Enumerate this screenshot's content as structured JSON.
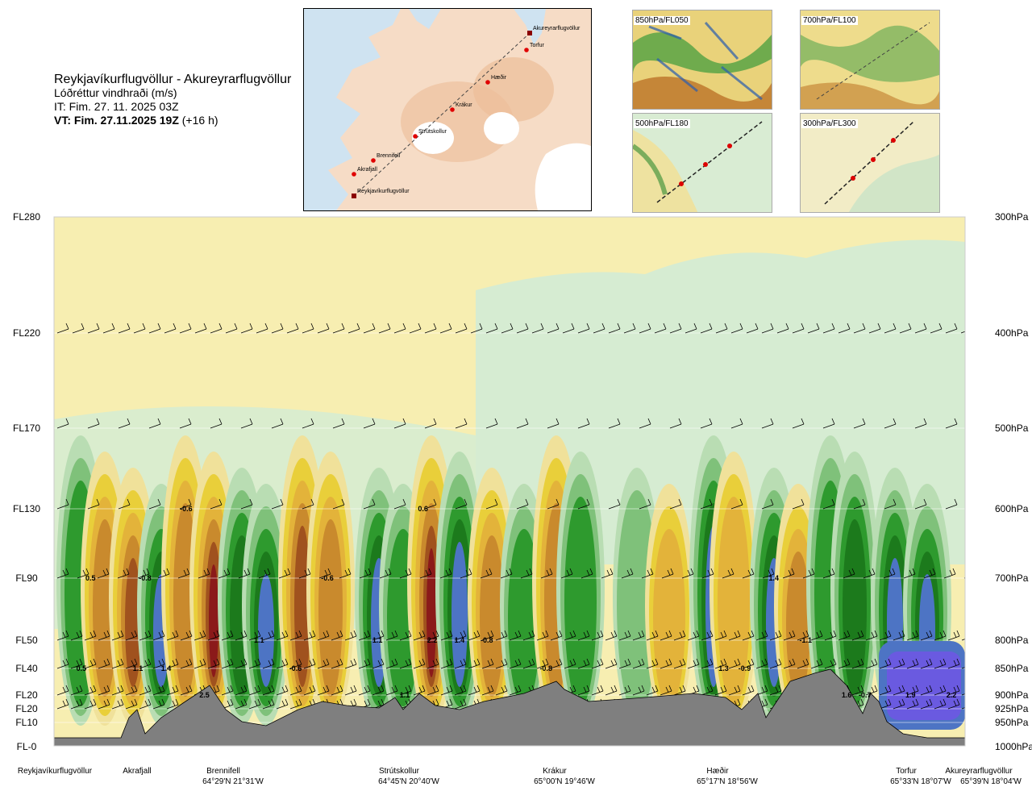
{
  "header": {
    "route": "Reykjavíkurflugvöllur - Akureyrarflugvöllur",
    "subtitle": "Lóðréttur vindhraði (m/s)",
    "it_line": "IT: Fim. 27. 11. 2025 03Z",
    "vt_bold": "VT: Fim. 27.11.2025 19Z",
    "vt_suffix": " (+16 h)"
  },
  "route_map": {
    "points": [
      {
        "name": "Akureyrarflugvöllur",
        "kind": "airport"
      },
      {
        "name": "Torfur",
        "kind": "waypoint"
      },
      {
        "name": "Hæðir",
        "kind": "waypoint"
      },
      {
        "name": "Krákur",
        "kind": "waypoint"
      },
      {
        "name": "Strútskollur",
        "kind": "waypoint"
      },
      {
        "name": "Brennifell",
        "kind": "waypoint"
      },
      {
        "name": "Akrafjall",
        "kind": "waypoint"
      },
      {
        "name": "Reykjavíkurflugvöllur",
        "kind": "airport"
      }
    ]
  },
  "level_maps": [
    {
      "label": "850hPa/FL050"
    },
    {
      "label": "700hPa/FL100"
    },
    {
      "label": "500hPa/FL180"
    },
    {
      "label": "300hPa/FL300"
    }
  ],
  "colors": {
    "ground": "#7f7f7f",
    "yellow_light": "#f7eeb1",
    "green_light": "#d6ecd2"
  },
  "chart_data": {
    "type": "heatmap",
    "title": "Lóðréttur vindhraði (m/s)",
    "variable": "vertical wind speed (m/s)",
    "levels_fl": [
      "FL280",
      "FL220",
      "FL170",
      "FL130",
      "FL90",
      "FL50",
      "FL40",
      "FL20",
      "FL20",
      "FL10",
      "FL-0"
    ],
    "levels_hpa": [
      "300hPa",
      "400hPa",
      "500hPa",
      "600hPa",
      "700hPa",
      "800hPa",
      "850hPa",
      "900hPa",
      "925hPa",
      "950hPa",
      "1000hPa"
    ],
    "locations": [
      {
        "name": "Reykjavíkurflugvöllur",
        "coord": "",
        "pos": 0.0
      },
      {
        "name": "Akrafjall",
        "coord": "",
        "pos": 0.09
      },
      {
        "name": "Brennifell",
        "coord": "64°29'N 21°31'W",
        "pos": 0.19
      },
      {
        "name": "Strútskollur",
        "coord": "64°45'N 20°40'W",
        "pos": 0.38
      },
      {
        "name": "Krákur",
        "coord": "65°00'N 19°46'W",
        "pos": 0.55
      },
      {
        "name": "Hæðir",
        "coord": "65°17'N 18°56'W",
        "pos": 0.74
      },
      {
        "name": "Torfur",
        "coord": "65°33'N 18°07'W",
        "pos": 0.93
      },
      {
        "name": "Akureyrarflugvöllur",
        "coord": "65°39'N 18°04'W",
        "pos": 1.0
      }
    ],
    "annotations": [
      {
        "text": "0.5",
        "x": 0.04,
        "level_hpa": 700
      },
      {
        "text": "-0.8",
        "x": 0.1,
        "level_hpa": 700
      },
      {
        "text": "-0.6",
        "x": 0.145,
        "level_hpa": 600
      },
      {
        "text": "-0.6",
        "x": 0.3,
        "level_hpa": 700
      },
      {
        "text": "0.6",
        "x": 0.405,
        "level_hpa": 600
      },
      {
        "text": "1.4",
        "x": 0.79,
        "level_hpa": 700
      },
      {
        "text": "1.1",
        "x": 0.225,
        "level_hpa": 800
      },
      {
        "text": "1.1",
        "x": 0.355,
        "level_hpa": 800
      },
      {
        "text": "2.2",
        "x": 0.415,
        "level_hpa": 800
      },
      {
        "text": "1.4",
        "x": 0.445,
        "level_hpa": 800
      },
      {
        "text": "-0.8",
        "x": 0.475,
        "level_hpa": 800
      },
      {
        "text": "-1.1",
        "x": 0.825,
        "level_hpa": 800
      },
      {
        "text": "0.5",
        "x": 0.03,
        "level_hpa": 850
      },
      {
        "text": "1.1",
        "x": 0.092,
        "level_hpa": 850
      },
      {
        "text": "1.4",
        "x": 0.123,
        "level_hpa": 850
      },
      {
        "text": "-0.6",
        "x": 0.265,
        "level_hpa": 850
      },
      {
        "text": "-0.8",
        "x": 0.54,
        "level_hpa": 850
      },
      {
        "text": "1.3",
        "x": 0.735,
        "level_hpa": 850
      },
      {
        "text": "-0.9",
        "x": 0.758,
        "level_hpa": 850
      },
      {
        "text": "1.1",
        "x": 0.385,
        "level_hpa": 900
      },
      {
        "text": "2.5",
        "x": 0.165,
        "level_hpa": 900
      },
      {
        "text": "1.6",
        "x": 0.87,
        "level_hpa": 900
      },
      {
        "text": "-0.7",
        "x": 0.89,
        "level_hpa": 900
      },
      {
        "text": "1.9",
        "x": 0.94,
        "level_hpa": 900
      },
      {
        "text": "2.2",
        "x": 0.985,
        "level_hpa": 900
      }
    ]
  }
}
